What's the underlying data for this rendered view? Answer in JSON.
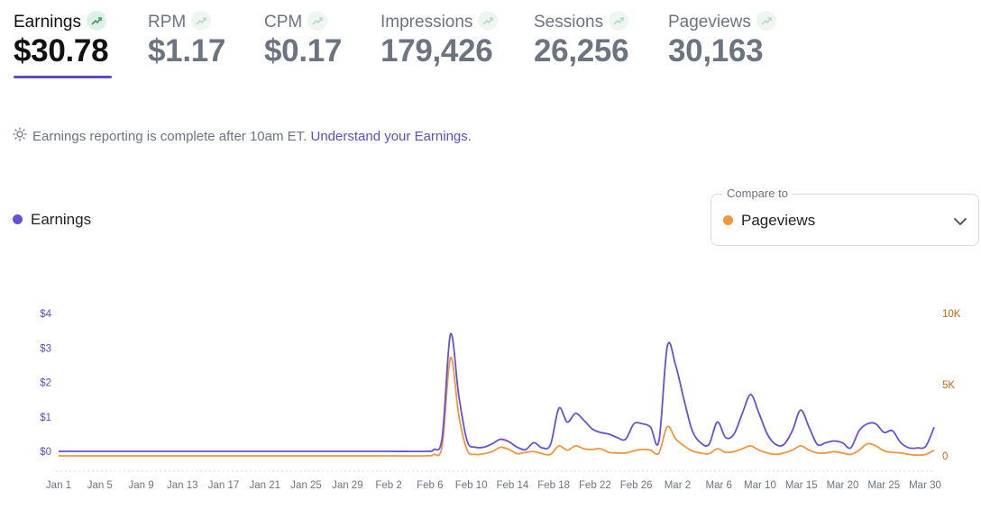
{
  "metrics": [
    {
      "label": "Earnings",
      "value": "$30.78",
      "active": true
    },
    {
      "label": "RPM",
      "value": "$1.17",
      "active": false
    },
    {
      "label": "CPM",
      "value": "$0.17",
      "active": false
    },
    {
      "label": "Impressions",
      "value": "179,426",
      "active": false
    },
    {
      "label": "Sessions",
      "value": "26,256",
      "active": false
    },
    {
      "label": "Pageviews",
      "value": "30,163",
      "active": false
    }
  ],
  "notice": {
    "icon": "sun-icon",
    "text": "Earnings reporting is complete after 10am ET.",
    "link": "Understand your Earnings."
  },
  "legend": {
    "label": "Earnings",
    "color": "#6352d6"
  },
  "compare": {
    "label": "Compare to",
    "value": "Pageviews",
    "color": "#f0963c"
  },
  "colors": {
    "accent": "#5b4ec4",
    "earnings": "#6352d6",
    "pageviews": "#f0963c",
    "left_axis": "#5b4ec4",
    "right_axis": "#b86a1e"
  },
  "chart_data": {
    "type": "line",
    "x_ticks": [
      "Jan 1",
      "Jan 5",
      "Jan 9",
      "Jan 13",
      "Jan 17",
      "Jan 21",
      "Jan 25",
      "Jan 29",
      "Feb 2",
      "Feb 6",
      "Feb 10",
      "Feb 14",
      "Feb 18",
      "Feb 22",
      "Feb 26",
      "Mar 2",
      "Mar 6",
      "Mar 10",
      "Mar 15",
      "Mar 20",
      "Mar 25",
      "Mar 30"
    ],
    "y_left_ticks": [
      "$4",
      "$3",
      "$2",
      "$1",
      "$0"
    ],
    "y_left_range": [
      0,
      4
    ],
    "y_right_ticks": [
      "10K",
      "5K",
      "0"
    ],
    "y_right_range": [
      0,
      10000
    ],
    "grid": false,
    "series": [
      {
        "name": "Earnings",
        "axis": "left",
        "color": "#6352d6",
        "points": [
          [
            1,
            0
          ],
          [
            10,
            0
          ],
          [
            20,
            0
          ],
          [
            30,
            0
          ],
          [
            40,
            0
          ],
          [
            45,
            0
          ],
          [
            46,
            0.05
          ],
          [
            47,
            0.4
          ],
          [
            48,
            3.4
          ],
          [
            49,
            1.6
          ],
          [
            50,
            0.3
          ],
          [
            51,
            0.12
          ],
          [
            52,
            0.12
          ],
          [
            53,
            0.22
          ],
          [
            54,
            0.35
          ],
          [
            55,
            0.28
          ],
          [
            56,
            0.12
          ],
          [
            57,
            0.05
          ],
          [
            58,
            0.25
          ],
          [
            59,
            0.1
          ],
          [
            60,
            0.2
          ],
          [
            61,
            1.25
          ],
          [
            62,
            0.85
          ],
          [
            63,
            1.1
          ],
          [
            64,
            0.9
          ],
          [
            65,
            0.65
          ],
          [
            66,
            0.55
          ],
          [
            67,
            0.5
          ],
          [
            68,
            0.4
          ],
          [
            69,
            0.35
          ],
          [
            70,
            0.8
          ],
          [
            71,
            0.8
          ],
          [
            72,
            0.7
          ],
          [
            73,
            0.3
          ],
          [
            74,
            3.05
          ],
          [
            75,
            2.5
          ],
          [
            76,
            1.5
          ],
          [
            77,
            0.6
          ],
          [
            78,
            0.25
          ],
          [
            79,
            0.2
          ],
          [
            80,
            0.85
          ],
          [
            81,
            0.4
          ],
          [
            82,
            0.5
          ],
          [
            83,
            1.1
          ],
          [
            84,
            1.65
          ],
          [
            85,
            1.1
          ],
          [
            86,
            0.5
          ],
          [
            87,
            0.2
          ],
          [
            88,
            0.2
          ],
          [
            89,
            0.6
          ],
          [
            90,
            1.2
          ],
          [
            91,
            0.7
          ],
          [
            92,
            0.2
          ],
          [
            93,
            0.25
          ],
          [
            94,
            0.3
          ],
          [
            95,
            0.25
          ],
          [
            96,
            0.1
          ],
          [
            97,
            0.6
          ],
          [
            98,
            0.8
          ],
          [
            99,
            0.8
          ],
          [
            100,
            0.55
          ],
          [
            101,
            0.6
          ],
          [
            102,
            0.25
          ],
          [
            103,
            0.1
          ],
          [
            104,
            0.1
          ],
          [
            105,
            0.15
          ],
          [
            106,
            0.7
          ]
        ]
      },
      {
        "name": "Pageviews",
        "axis": "right",
        "color": "#f0963c",
        "points": [
          [
            1,
            0
          ],
          [
            20,
            0
          ],
          [
            40,
            0
          ],
          [
            45,
            0
          ],
          [
            46,
            100
          ],
          [
            47,
            700
          ],
          [
            48,
            6900
          ],
          [
            49,
            2800
          ],
          [
            50,
            400
          ],
          [
            51,
            100
          ],
          [
            52,
            150
          ],
          [
            53,
            300
          ],
          [
            54,
            600
          ],
          [
            55,
            450
          ],
          [
            56,
            150
          ],
          [
            57,
            250
          ],
          [
            58,
            300
          ],
          [
            59,
            150
          ],
          [
            60,
            100
          ],
          [
            61,
            700
          ],
          [
            62,
            400
          ],
          [
            63,
            700
          ],
          [
            64,
            500
          ],
          [
            65,
            450
          ],
          [
            66,
            500
          ],
          [
            67,
            250
          ],
          [
            68,
            200
          ],
          [
            69,
            200
          ],
          [
            70,
            350
          ],
          [
            71,
            450
          ],
          [
            72,
            400
          ],
          [
            73,
            200
          ],
          [
            74,
            2050
          ],
          [
            75,
            1200
          ],
          [
            76,
            700
          ],
          [
            77,
            350
          ],
          [
            78,
            200
          ],
          [
            79,
            150
          ],
          [
            80,
            500
          ],
          [
            81,
            250
          ],
          [
            82,
            300
          ],
          [
            83,
            500
          ],
          [
            84,
            700
          ],
          [
            85,
            400
          ],
          [
            86,
            200
          ],
          [
            87,
            100
          ],
          [
            88,
            200
          ],
          [
            89,
            400
          ],
          [
            90,
            700
          ],
          [
            91,
            400
          ],
          [
            92,
            200
          ],
          [
            93,
            200
          ],
          [
            94,
            300
          ],
          [
            95,
            200
          ],
          [
            96,
            100
          ],
          [
            97,
            400
          ],
          [
            98,
            850
          ],
          [
            99,
            700
          ],
          [
            100,
            350
          ],
          [
            101,
            250
          ],
          [
            102,
            200
          ],
          [
            103,
            100
          ],
          [
            104,
            50
          ],
          [
            105,
            100
          ],
          [
            106,
            400
          ]
        ]
      }
    ]
  }
}
